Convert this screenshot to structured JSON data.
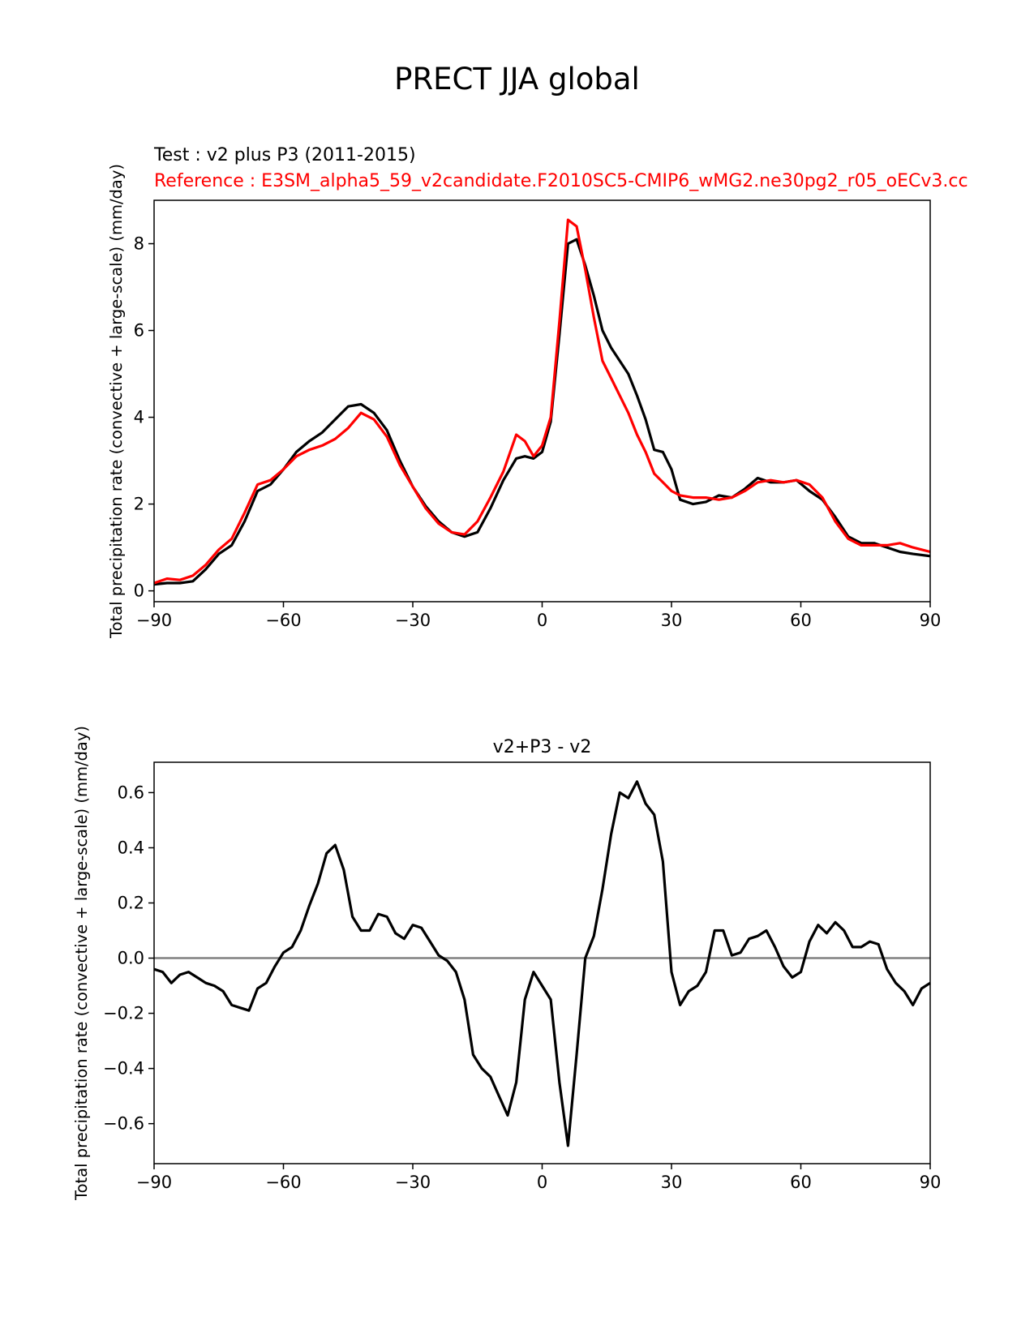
{
  "figure": {
    "title": "PRECT JJA global",
    "test_label": "Test : v2 plus P3 (2011-2015)",
    "reference_label": "Reference : E3SM_alpha5_59_v2candidate.F2010SC5-CMIP6_wMG2.ne30pg2_r05_oECv3.cc"
  },
  "colors": {
    "test": "#000000",
    "reference": "#ff0000",
    "zero_line": "#808080"
  },
  "chart_data": [
    {
      "id": "top",
      "type": "line",
      "title": "",
      "xlabel": "",
      "ylabel": "Total precipitation rate (convective + large-scale) (mm/day)",
      "xlim": [
        -90,
        90
      ],
      "ylim": [
        -0.25,
        9.0
      ],
      "xticks": [
        -90,
        -60,
        -30,
        0,
        30,
        60,
        90
      ],
      "xtick_labels": [
        "−90",
        "−60",
        "−30",
        "0",
        "30",
        "60",
        "90"
      ],
      "yticks": [
        0,
        2,
        4,
        6,
        8
      ],
      "ytick_labels": [
        "0",
        "2",
        "4",
        "6",
        "8"
      ],
      "series": [
        {
          "name": "Test",
          "color": "#000000",
          "x": [
            -90,
            -87,
            -84,
            -81,
            -78,
            -75,
            -72,
            -69,
            -66,
            -63,
            -60,
            -57,
            -54,
            -51,
            -48,
            -45,
            -42,
            -39,
            -36,
            -33,
            -30,
            -27,
            -24,
            -21,
            -18,
            -15,
            -12,
            -9,
            -6,
            -4,
            -2,
            0,
            2,
            4,
            6,
            8,
            10,
            12,
            14,
            16,
            18,
            20,
            22,
            24,
            26,
            28,
            30,
            32,
            35,
            38,
            41,
            44,
            47,
            50,
            53,
            56,
            59,
            62,
            65,
            68,
            71,
            74,
            77,
            80,
            83,
            86,
            90
          ],
          "values": [
            0.15,
            0.18,
            0.18,
            0.22,
            0.5,
            0.85,
            1.05,
            1.6,
            2.3,
            2.45,
            2.8,
            3.2,
            3.45,
            3.65,
            3.95,
            4.25,
            4.3,
            4.1,
            3.7,
            3.0,
            2.4,
            1.95,
            1.6,
            1.35,
            1.25,
            1.35,
            1.9,
            2.55,
            3.05,
            3.1,
            3.05,
            3.2,
            3.9,
            5.9,
            8.0,
            8.1,
            7.5,
            6.8,
            6.0,
            5.6,
            5.3,
            5.0,
            4.5,
            3.95,
            3.25,
            3.2,
            2.8,
            2.1,
            2.0,
            2.05,
            2.2,
            2.15,
            2.35,
            2.6,
            2.5,
            2.5,
            2.55,
            2.3,
            2.1,
            1.7,
            1.25,
            1.1,
            1.1,
            1.0,
            0.9,
            0.85,
            0.8
          ]
        },
        {
          "name": "Reference",
          "color": "#ff0000",
          "x": [
            -90,
            -87,
            -84,
            -81,
            -78,
            -75,
            -72,
            -69,
            -66,
            -63,
            -60,
            -57,
            -54,
            -51,
            -48,
            -45,
            -42,
            -39,
            -36,
            -33,
            -30,
            -27,
            -24,
            -21,
            -18,
            -15,
            -12,
            -9,
            -6,
            -4,
            -2,
            0,
            2,
            4,
            6,
            8,
            10,
            12,
            14,
            16,
            18,
            20,
            22,
            24,
            26,
            28,
            30,
            32,
            35,
            38,
            41,
            44,
            47,
            50,
            53,
            56,
            59,
            62,
            65,
            68,
            71,
            74,
            77,
            80,
            83,
            86,
            90
          ],
          "values": [
            0.18,
            0.28,
            0.25,
            0.35,
            0.6,
            0.95,
            1.2,
            1.8,
            2.45,
            2.55,
            2.8,
            3.1,
            3.25,
            3.35,
            3.5,
            3.75,
            4.1,
            3.95,
            3.55,
            2.9,
            2.4,
            1.9,
            1.55,
            1.35,
            1.3,
            1.6,
            2.15,
            2.75,
            3.6,
            3.45,
            3.1,
            3.35,
            4.0,
            6.2,
            8.55,
            8.4,
            7.4,
            6.3,
            5.3,
            4.9,
            4.5,
            4.1,
            3.6,
            3.2,
            2.7,
            2.5,
            2.3,
            2.2,
            2.15,
            2.15,
            2.1,
            2.15,
            2.3,
            2.5,
            2.55,
            2.5,
            2.55,
            2.45,
            2.15,
            1.6,
            1.2,
            1.05,
            1.05,
            1.05,
            1.1,
            1.0,
            0.9
          ]
        }
      ]
    },
    {
      "id": "bottom",
      "type": "line",
      "title": "v2+P3 - v2",
      "xlabel": "",
      "ylabel": "Total precipitation rate (convective + large-scale) (mm/day)",
      "xlim": [
        -90,
        90
      ],
      "ylim": [
        -0.745,
        0.71
      ],
      "xticks": [
        -90,
        -60,
        -30,
        0,
        30,
        60,
        90
      ],
      "xtick_labels": [
        "−90",
        "−60",
        "−30",
        "0",
        "30",
        "60",
        "90"
      ],
      "yticks": [
        -0.6,
        -0.4,
        -0.2,
        0.0,
        0.2,
        0.4,
        0.6
      ],
      "ytick_labels": [
        "−0.6",
        "−0.4",
        "−0.2",
        "0.0",
        "0.2",
        "0.4",
        "0.6"
      ],
      "zero_line": true,
      "series": [
        {
          "name": "v2+P3 - v2",
          "color": "#000000",
          "x": [
            -90,
            -88,
            -86,
            -84,
            -82,
            -80,
            -78,
            -76,
            -74,
            -72,
            -70,
            -68,
            -66,
            -64,
            -62,
            -60,
            -58,
            -56,
            -54,
            -52,
            -50,
            -48,
            -46,
            -44,
            -42,
            -40,
            -38,
            -36,
            -34,
            -32,
            -30,
            -28,
            -26,
            -24,
            -22,
            -20,
            -18,
            -16,
            -14,
            -12,
            -10,
            -8,
            -6,
            -4,
            -2,
            0,
            2,
            4,
            6,
            8,
            10,
            12,
            14,
            16,
            18,
            20,
            22,
            24,
            26,
            28,
            30,
            32,
            34,
            36,
            38,
            40,
            42,
            44,
            46,
            48,
            50,
            52,
            54,
            56,
            58,
            60,
            62,
            64,
            66,
            68,
            70,
            72,
            74,
            76,
            78,
            80,
            82,
            84,
            86,
            88,
            90
          ],
          "values": [
            -0.04,
            -0.05,
            -0.09,
            -0.06,
            -0.05,
            -0.07,
            -0.09,
            -0.1,
            -0.12,
            -0.17,
            -0.18,
            -0.19,
            -0.11,
            -0.09,
            -0.03,
            0.02,
            0.04,
            0.1,
            0.19,
            0.27,
            0.38,
            0.41,
            0.32,
            0.15,
            0.1,
            0.1,
            0.16,
            0.15,
            0.09,
            0.07,
            0.12,
            0.11,
            0.06,
            0.01,
            -0.01,
            -0.05,
            -0.15,
            -0.35,
            -0.4,
            -0.43,
            -0.5,
            -0.57,
            -0.45,
            -0.15,
            -0.05,
            -0.1,
            -0.15,
            -0.45,
            -0.68,
            -0.35,
            0.0,
            0.08,
            0.25,
            0.45,
            0.6,
            0.58,
            0.64,
            0.56,
            0.52,
            0.35,
            -0.05,
            -0.17,
            -0.12,
            -0.1,
            -0.05,
            0.1,
            0.1,
            0.01,
            0.02,
            0.07,
            0.08,
            0.1,
            0.04,
            -0.03,
            -0.07,
            -0.05,
            0.06,
            0.12,
            0.09,
            0.13,
            0.1,
            0.04,
            0.04,
            0.06,
            0.05,
            -0.04,
            -0.09,
            -0.12,
            -0.17,
            -0.11,
            -0.09
          ]
        }
      ]
    }
  ]
}
